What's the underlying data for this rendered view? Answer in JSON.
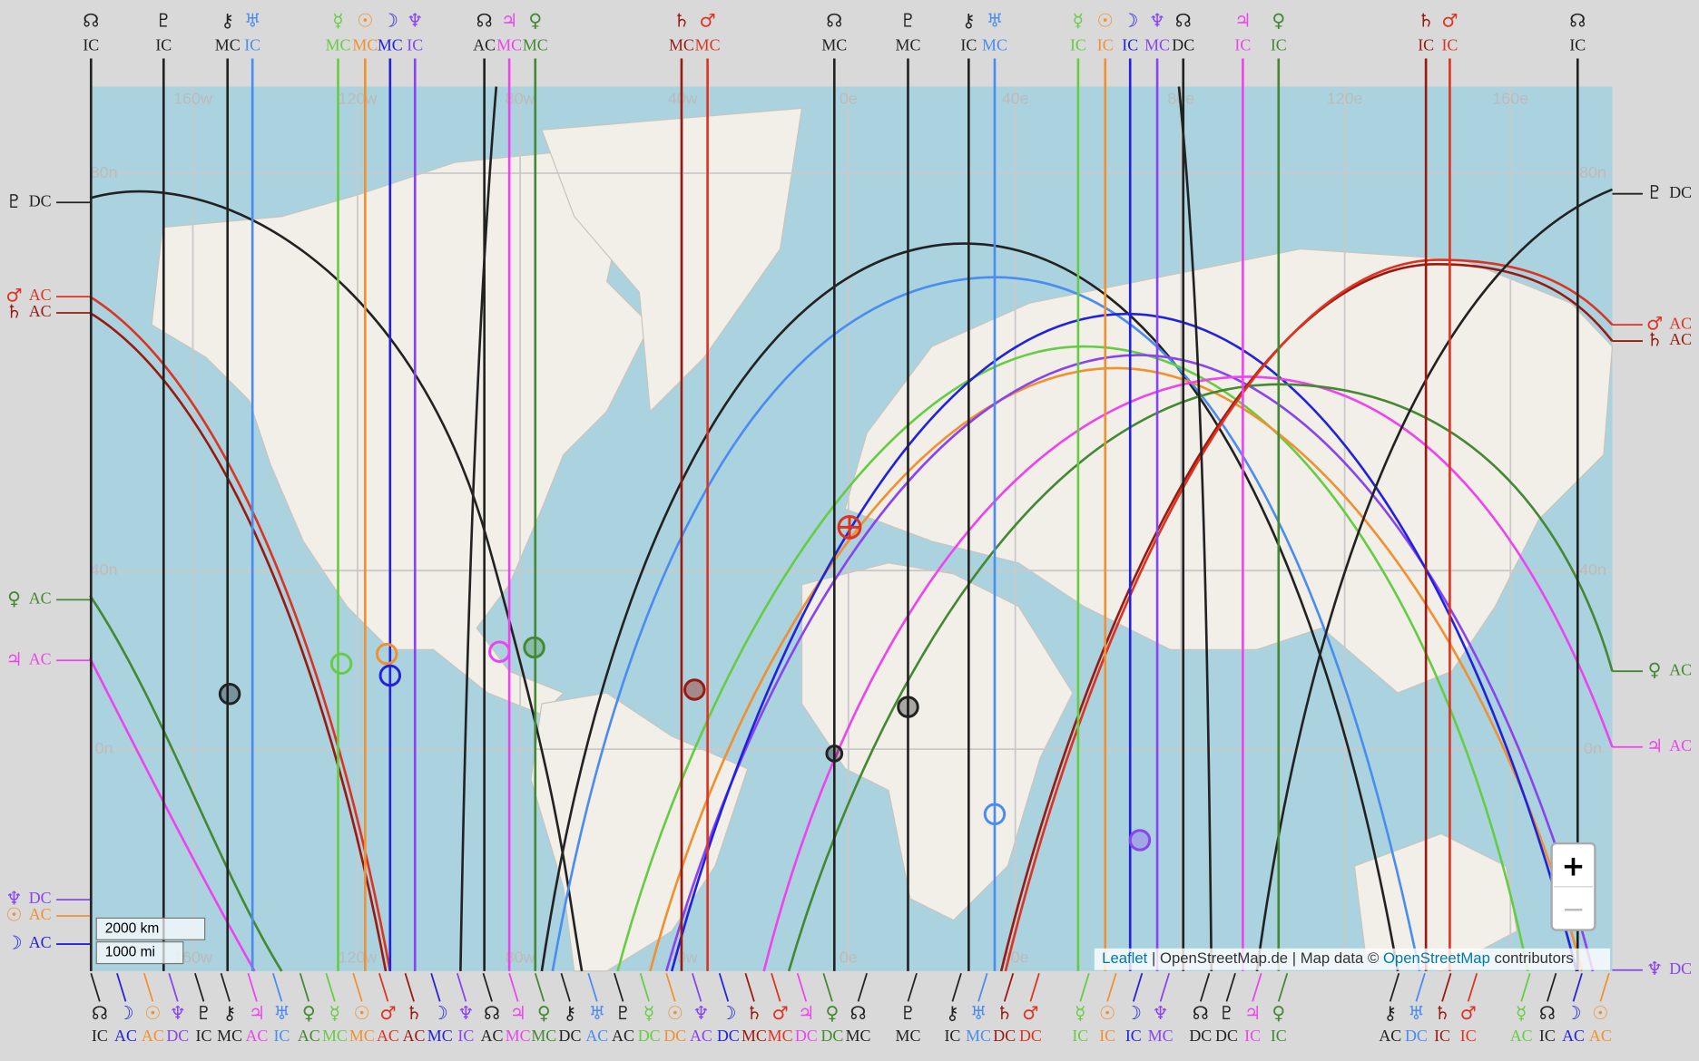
{
  "map": {
    "top_labels": [
      {
        "symbol": "☊",
        "angle": "IC",
        "color": "#222222"
      },
      {
        "symbol": "♇",
        "angle": "IC",
        "color": "#222222"
      },
      {
        "symbol": "⚷",
        "angle": "MC",
        "color": "#222222"
      },
      {
        "symbol": "♅",
        "angle": "IC",
        "color": "#4a8cf0"
      },
      {
        "symbol": "☿",
        "angle": "MC",
        "color": "#66cc44"
      },
      {
        "symbol": "☉",
        "angle": "MC",
        "color": "#f09030"
      },
      {
        "symbol": "☽",
        "angle": "MC",
        "color": "#2222dd"
      },
      {
        "symbol": "♆",
        "angle": "IC",
        "color": "#8844ee"
      },
      {
        "symbol": "☊",
        "angle": "AC",
        "color": "#222222"
      },
      {
        "symbol": "♃",
        "angle": "MC",
        "color": "#ee44ee"
      },
      {
        "symbol": "♀",
        "angle": "MC",
        "color": "#448833"
      },
      {
        "symbol": "♄",
        "angle": "MC",
        "color": "#991a10"
      },
      {
        "symbol": "♂",
        "angle": "MC",
        "color": "#dd3322"
      },
      {
        "symbol": "☊",
        "angle": "MC",
        "color": "#222222"
      },
      {
        "symbol": "♇",
        "angle": "MC",
        "color": "#222222"
      },
      {
        "symbol": "⚷",
        "angle": "IC",
        "color": "#222222"
      },
      {
        "symbol": "♅",
        "angle": "MC",
        "color": "#4a8cf0"
      },
      {
        "symbol": "☿",
        "angle": "IC",
        "color": "#66cc44"
      },
      {
        "symbol": "☉",
        "angle": "IC",
        "color": "#f09030"
      },
      {
        "symbol": "☽",
        "angle": "IC",
        "color": "#2222dd"
      },
      {
        "symbol": "♆",
        "angle": "MC",
        "color": "#8844ee"
      },
      {
        "symbol": "☊",
        "angle": "DC",
        "color": "#222222"
      },
      {
        "symbol": "♃",
        "angle": "IC",
        "color": "#ee44ee"
      },
      {
        "symbol": "♀",
        "angle": "IC",
        "color": "#448833"
      },
      {
        "symbol": "♄",
        "angle": "IC",
        "color": "#991a10"
      },
      {
        "symbol": "♂",
        "angle": "IC",
        "color": "#dd3322"
      },
      {
        "symbol": "☊",
        "angle": "IC",
        "color": "#222222"
      }
    ],
    "bottom_labels": [
      {
        "symbol": "☊",
        "angle": "IC",
        "color": "#222222"
      },
      {
        "symbol": "☽",
        "angle": "AC",
        "color": "#2222dd"
      },
      {
        "symbol": "☉",
        "angle": "AC",
        "color": "#f09030"
      },
      {
        "symbol": "♆",
        "angle": "DC",
        "color": "#8844ee"
      },
      {
        "symbol": "♇",
        "angle": "IC",
        "color": "#222222"
      },
      {
        "symbol": "⚷",
        "angle": "MC",
        "color": "#222222"
      },
      {
        "symbol": "♃",
        "angle": "AC",
        "color": "#ee44ee"
      },
      {
        "symbol": "♅",
        "angle": "IC",
        "color": "#4a8cf0"
      },
      {
        "symbol": "♀",
        "angle": "AC",
        "color": "#448833"
      },
      {
        "symbol": "☿",
        "angle": "MC",
        "color": "#66cc44"
      },
      {
        "symbol": "☉",
        "angle": "MC",
        "color": "#f09030"
      },
      {
        "symbol": "♂",
        "angle": "AC",
        "color": "#dd3322"
      },
      {
        "symbol": "♄",
        "angle": "AC",
        "color": "#991a10"
      },
      {
        "symbol": "☽",
        "angle": "MC",
        "color": "#2222dd"
      },
      {
        "symbol": "♆",
        "angle": "IC",
        "color": "#8844ee"
      },
      {
        "symbol": "☊",
        "angle": "AC",
        "color": "#222222"
      },
      {
        "symbol": "♃",
        "angle": "MC",
        "color": "#ee44ee"
      },
      {
        "symbol": "♀",
        "angle": "MC",
        "color": "#448833"
      },
      {
        "symbol": "⚷",
        "angle": "DC",
        "color": "#222222"
      },
      {
        "symbol": "♅",
        "angle": "AC",
        "color": "#4a8cf0"
      },
      {
        "symbol": "♇",
        "angle": "AC",
        "color": "#222222"
      },
      {
        "symbol": "☿",
        "angle": "DC",
        "color": "#66cc44"
      },
      {
        "symbol": "☉",
        "angle": "DC",
        "color": "#f09030"
      },
      {
        "symbol": "♆",
        "angle": "AC",
        "color": "#8844ee"
      },
      {
        "symbol": "☽",
        "angle": "DC",
        "color": "#2222dd"
      },
      {
        "symbol": "♄",
        "angle": "MC",
        "color": "#991a10"
      },
      {
        "symbol": "♂",
        "angle": "MC",
        "color": "#dd3322"
      },
      {
        "symbol": "♃",
        "angle": "DC",
        "color": "#ee44ee"
      },
      {
        "symbol": "♀",
        "angle": "DC",
        "color": "#448833"
      },
      {
        "symbol": "☊",
        "angle": "MC",
        "color": "#222222"
      },
      {
        "symbol": "♇",
        "angle": "MC",
        "color": "#222222"
      },
      {
        "symbol": "⚷",
        "angle": "IC",
        "color": "#222222"
      },
      {
        "symbol": "♅",
        "angle": "MC",
        "color": "#4a8cf0"
      },
      {
        "symbol": "♄",
        "angle": "DC",
        "color": "#991a10"
      },
      {
        "symbol": "♂",
        "angle": "DC",
        "color": "#dd3322"
      },
      {
        "symbol": "☿",
        "angle": "IC",
        "color": "#66cc44"
      },
      {
        "symbol": "☉",
        "angle": "IC",
        "color": "#f09030"
      },
      {
        "symbol": "☽",
        "angle": "IC",
        "color": "#2222dd"
      },
      {
        "symbol": "♆",
        "angle": "MC",
        "color": "#8844ee"
      },
      {
        "symbol": "☊",
        "angle": "DC",
        "color": "#222222"
      },
      {
        "symbol": "♇",
        "angle": "DC",
        "color": "#222222"
      },
      {
        "symbol": "♃",
        "angle": "IC",
        "color": "#ee44ee"
      },
      {
        "symbol": "♀",
        "angle": "IC",
        "color": "#448833"
      },
      {
        "symbol": "⚷",
        "angle": "AC",
        "color": "#222222"
      },
      {
        "symbol": "♅",
        "angle": "DC",
        "color": "#4a8cf0"
      },
      {
        "symbol": "♄",
        "angle": "IC",
        "color": "#991a10"
      },
      {
        "symbol": "♂",
        "angle": "IC",
        "color": "#dd3322"
      },
      {
        "symbol": "☿",
        "angle": "AC",
        "color": "#66cc44"
      },
      {
        "symbol": "☊",
        "angle": "IC",
        "color": "#222222"
      },
      {
        "symbol": "☽",
        "angle": "AC",
        "color": "#2222dd"
      },
      {
        "symbol": "☉",
        "angle": "AC",
        "color": "#f09030"
      }
    ],
    "left_labels": [
      {
        "symbol": "♇",
        "angle": "DC",
        "color": "#222222"
      },
      {
        "symbol": "♂",
        "angle": "AC",
        "color": "#dd3322"
      },
      {
        "symbol": "♄",
        "angle": "AC",
        "color": "#991a10"
      },
      {
        "symbol": "♀",
        "angle": "AC",
        "color": "#448833"
      },
      {
        "symbol": "♃",
        "angle": "AC",
        "color": "#ee44ee"
      },
      {
        "symbol": "♆",
        "angle": "DC",
        "color": "#8844ee"
      },
      {
        "symbol": "☉",
        "angle": "AC",
        "color": "#f09030"
      },
      {
        "symbol": "☽",
        "angle": "AC",
        "color": "#2222dd"
      }
    ],
    "right_labels": [
      {
        "symbol": "♇",
        "angle": "DC",
        "color": "#222222"
      },
      {
        "symbol": "♂",
        "angle": "AC",
        "color": "#dd3322"
      },
      {
        "symbol": "♄",
        "angle": "AC",
        "color": "#991a10"
      },
      {
        "symbol": "♀",
        "angle": "AC",
        "color": "#448833"
      },
      {
        "symbol": "♃",
        "angle": "AC",
        "color": "#ee44ee"
      },
      {
        "symbol": "♆",
        "angle": "DC",
        "color": "#8844ee"
      }
    ],
    "longitude_labels": [
      "160w",
      "120w",
      "80w",
      "40w",
      "0e",
      "40e",
      "80e",
      "120e",
      "160e"
    ],
    "latitude_labels": [
      "80n",
      "40n",
      "0n"
    ],
    "scale": {
      "km": "2000 km",
      "mi": "1000 mi"
    },
    "zoom": {
      "in": "+",
      "out": "−"
    },
    "attribution": {
      "leaflet": "Leaflet",
      "text1": " | OpenStreetMap.de | Map data © ",
      "osm": "OpenStreetMap",
      "text2": " contributors"
    }
  }
}
